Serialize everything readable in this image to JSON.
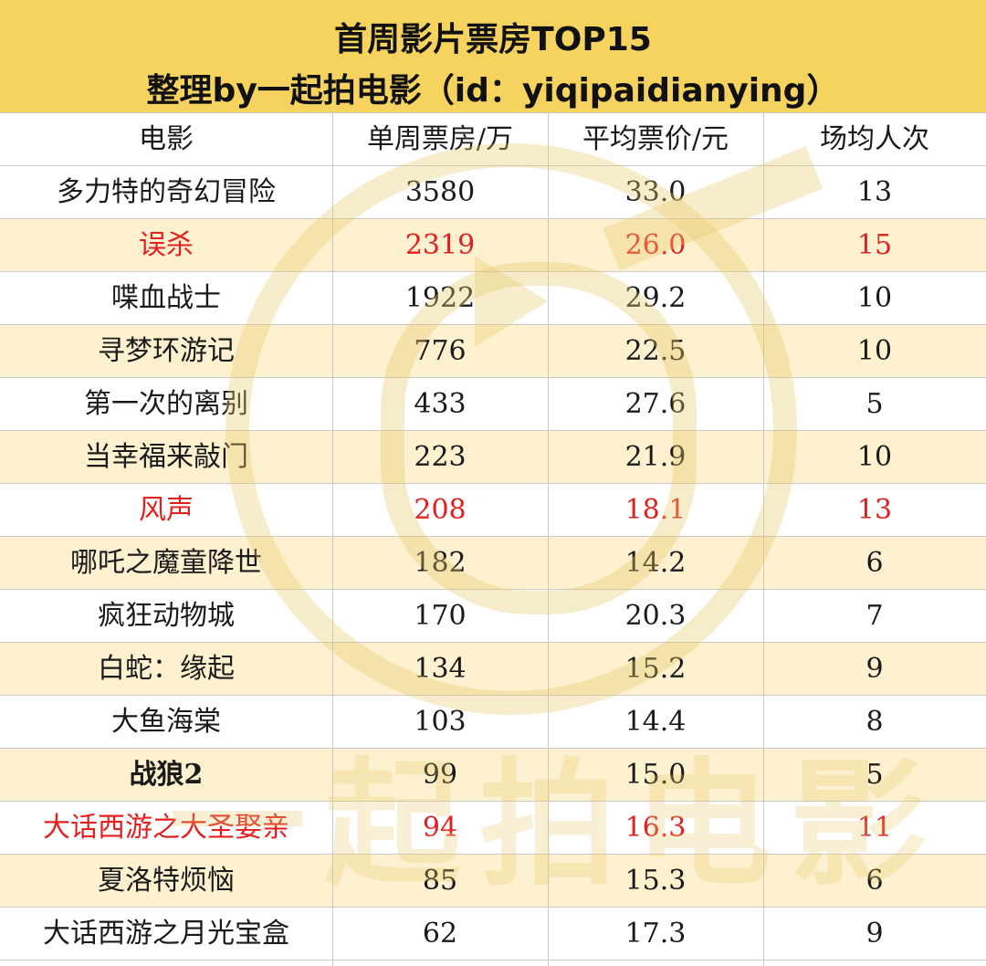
{
  "title": {
    "line1": "首周影片票房TOP15",
    "line2": "整理by一起拍电影（id：yiqipaidianying）"
  },
  "watermark": {
    "text": "一起拍电影",
    "color": "#e8c96a"
  },
  "colors": {
    "header_bg": "#f5d35e",
    "alt_row_bg": "#fdf1cf",
    "highlight": "#e32020",
    "grid": "#c9c9c9"
  },
  "chart_data": {
    "type": "table",
    "title": "首周影片票房TOP15",
    "columns": [
      "电影",
      "单周票房/万",
      "平均票价/元",
      "场均人次"
    ],
    "rows": [
      {
        "cells": [
          "多力特的奇幻冒险",
          "3580",
          "33.0",
          "13"
        ],
        "highlight": false
      },
      {
        "cells": [
          "误杀",
          "2319",
          "26.0",
          "15"
        ],
        "highlight": true
      },
      {
        "cells": [
          "喋血战士",
          "1922",
          "29.2",
          "10"
        ],
        "highlight": false
      },
      {
        "cells": [
          "寻梦环游记",
          "776",
          "22.5",
          "10"
        ],
        "highlight": false
      },
      {
        "cells": [
          "第一次的离别",
          "433",
          "27.6",
          "5"
        ],
        "highlight": false
      },
      {
        "cells": [
          "当幸福来敲门",
          "223",
          "21.9",
          "10"
        ],
        "highlight": false
      },
      {
        "cells": [
          "风声",
          "208",
          "18.1",
          "13"
        ],
        "highlight": true
      },
      {
        "cells": [
          "哪吒之魔童降世",
          "182",
          "14.2",
          "6"
        ],
        "highlight": false
      },
      {
        "cells": [
          "疯狂动物城",
          "170",
          "20.3",
          "7"
        ],
        "highlight": false
      },
      {
        "cells": [
          "白蛇：缘起",
          "134",
          "15.2",
          "9"
        ],
        "highlight": false
      },
      {
        "cells": [
          "大鱼海棠",
          "103",
          "14.4",
          "8"
        ],
        "highlight": false
      },
      {
        "cells": [
          "战狼2",
          "99",
          "15.0",
          "5"
        ],
        "highlight": false,
        "bold": true
      },
      {
        "cells": [
          "大话西游之大圣娶亲",
          "94",
          "16.3",
          "11"
        ],
        "highlight": true
      },
      {
        "cells": [
          "夏洛特烦恼",
          "85",
          "15.3",
          "6"
        ],
        "highlight": false
      },
      {
        "cells": [
          "大话西游之月光宝盒",
          "62",
          "17.3",
          "9"
        ],
        "highlight": false
      }
    ]
  }
}
